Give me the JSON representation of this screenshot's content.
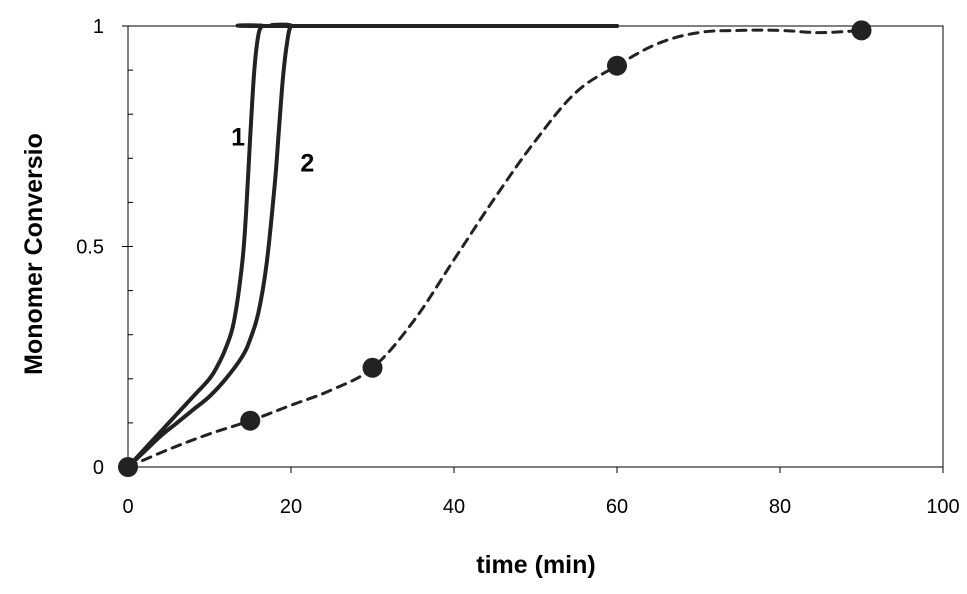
{
  "chart_data": {
    "type": "line",
    "xlabel": "time (min)",
    "ylabel": "Monomer Conversio",
    "xlim": [
      0,
      100
    ],
    "ylim": [
      0,
      1
    ],
    "x_ticks": [
      "0",
      "20",
      "40",
      "60",
      "80",
      "100"
    ],
    "y_ticks": [
      "0",
      "0.5",
      "1"
    ],
    "grid": false,
    "series": [
      {
        "name": "1",
        "style": "solid",
        "color": "#222222",
        "x": [
          0,
          2,
          4,
          6,
          8,
          10,
          11,
          12,
          13,
          14,
          14.5,
          15,
          15.5,
          16,
          16.5,
          17,
          60
        ],
        "y": [
          0,
          0.04,
          0.08,
          0.12,
          0.16,
          0.2,
          0.23,
          0.27,
          0.33,
          0.46,
          0.58,
          0.75,
          0.9,
          0.98,
          1.0,
          1.0,
          1.0
        ]
      },
      {
        "name": "2",
        "style": "solid",
        "color": "#222222",
        "x": [
          0,
          2,
          4,
          6,
          8,
          10,
          12,
          14,
          15,
          16,
          17,
          18,
          18.5,
          19,
          19.5,
          20,
          21,
          60
        ],
        "y": [
          0,
          0.035,
          0.07,
          0.1,
          0.13,
          0.16,
          0.2,
          0.25,
          0.29,
          0.35,
          0.46,
          0.64,
          0.76,
          0.88,
          0.96,
          1.0,
          1.0,
          1.0
        ]
      },
      {
        "name": "",
        "style": "dashed",
        "color": "#222222",
        "markers": true,
        "points_x": [
          0,
          15,
          30,
          60,
          90
        ],
        "points_y": [
          0,
          0.105,
          0.225,
          0.91,
          0.99
        ],
        "x": [
          0,
          5,
          10,
          15,
          20,
          25,
          30,
          35,
          40,
          45,
          50,
          55,
          60,
          65,
          70,
          75,
          80,
          85,
          90
        ],
        "y": [
          0,
          0.04,
          0.075,
          0.105,
          0.14,
          0.175,
          0.225,
          0.33,
          0.47,
          0.61,
          0.74,
          0.85,
          0.91,
          0.96,
          0.985,
          0.99,
          0.99,
          0.985,
          0.99
        ]
      }
    ],
    "curve_labels": [
      {
        "text": "1",
        "x": 13.5,
        "y": 0.75
      },
      {
        "text": "2",
        "x": 22,
        "y": 0.69
      }
    ]
  }
}
